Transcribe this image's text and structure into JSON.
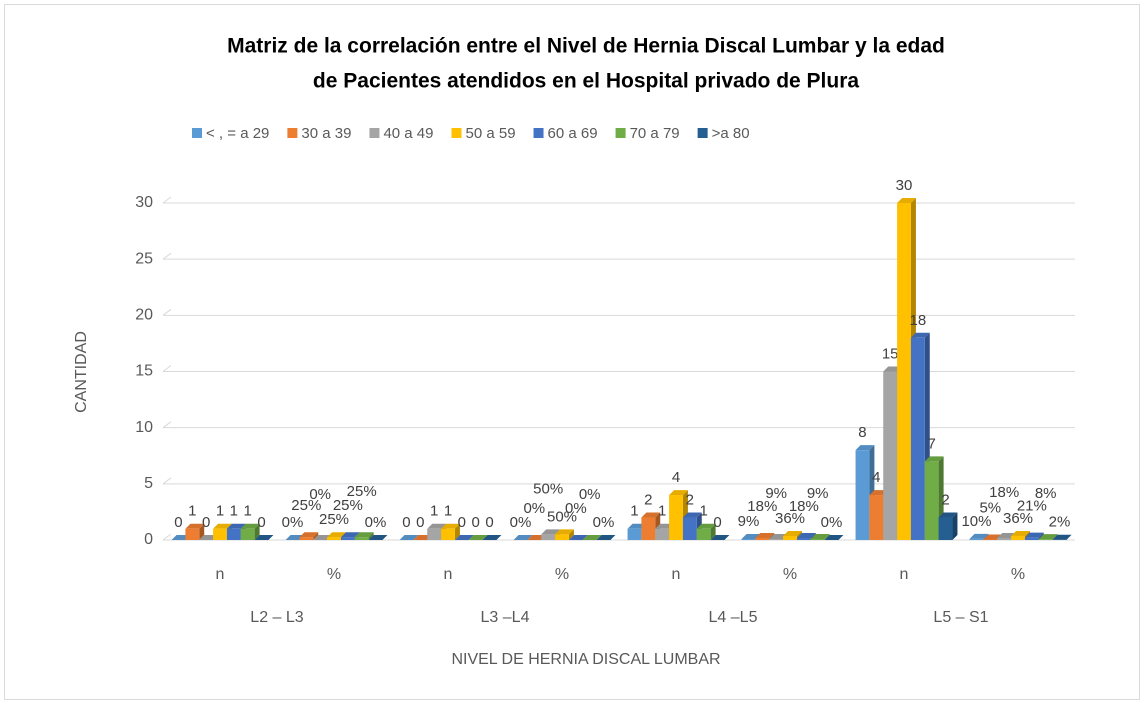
{
  "chart_data": {
    "type": "bar3d",
    "title": [
      "Matriz de la correlación entre el Nivel de Hernia Discal Lumbar y la edad",
      "de Pacientes atendidos en el Hospital privado de Plura"
    ],
    "x_label": "NIVEL DE HERNIA DISCAL LUMBAR",
    "y_label": "CANTIDAD",
    "categories": [
      "n",
      "%",
      "n",
      "%",
      "n",
      "%",
      "n",
      "%"
    ],
    "category_groups": [
      "L2 – L3",
      "L3 –L4",
      "L4 –L5",
      "L5 – S1"
    ],
    "ylim": [
      0,
      30
    ],
    "yticks": [
      0,
      5,
      10,
      15,
      20,
      25,
      30
    ],
    "grid": true,
    "legend": "top",
    "series": [
      {
        "name": "< , = a 29",
        "color": "#5b9bd5",
        "values": [
          0,
          0,
          0,
          0,
          1,
          0.09,
          8,
          0.1
        ],
        "value_labels": [
          "0",
          "0%",
          "0",
          "0%",
          "1",
          "9%",
          "8",
          "10%"
        ]
      },
      {
        "name": "30 a 39",
        "color": "#ed7d31",
        "values": [
          1,
          0.25,
          0,
          0,
          2,
          0.18,
          4,
          0.05
        ],
        "value_labels": [
          "1",
          "25%",
          "0",
          "0%",
          "2",
          "18%",
          "4",
          "5%"
        ]
      },
      {
        "name": "40 a 49",
        "color": "#a5a5a5",
        "values": [
          0,
          0,
          1,
          0.5,
          1,
          0.09,
          15,
          0.18
        ],
        "value_labels": [
          "0",
          "0%",
          "1",
          "50%",
          "1",
          "9%",
          "15",
          "18%"
        ]
      },
      {
        "name": "50 a 59",
        "color": "#ffc000",
        "values": [
          1,
          0.25,
          1,
          0.5,
          4,
          0.36,
          30,
          0.36
        ],
        "value_labels": [
          "1",
          "25%",
          "1",
          "50%",
          "4",
          "36%",
          "30",
          "36%"
        ]
      },
      {
        "name": "60 a 69",
        "color": "#4472c4",
        "values": [
          1,
          0.25,
          0,
          0,
          2,
          0.18,
          18,
          0.21
        ],
        "value_labels": [
          "1",
          "25%",
          "0",
          "0%",
          "2",
          "18%",
          "18",
          "21%"
        ]
      },
      {
        "name": "70 a 79",
        "color": "#70ad47",
        "values": [
          1,
          0.25,
          0,
          0,
          1,
          0.09,
          7,
          0.08
        ],
        "value_labels": [
          "1",
          "25%",
          "0",
          "0%",
          "1",
          "9%",
          "7",
          "8%"
        ]
      },
      {
        "name": ">a 80",
        "color": "#255e91",
        "values": [
          0,
          0,
          0,
          0,
          0,
          0,
          2,
          0.02
        ],
        "value_labels": [
          "0",
          "0%",
          "0",
          "0%",
          "0",
          "0%",
          "2",
          "2%"
        ]
      }
    ]
  }
}
